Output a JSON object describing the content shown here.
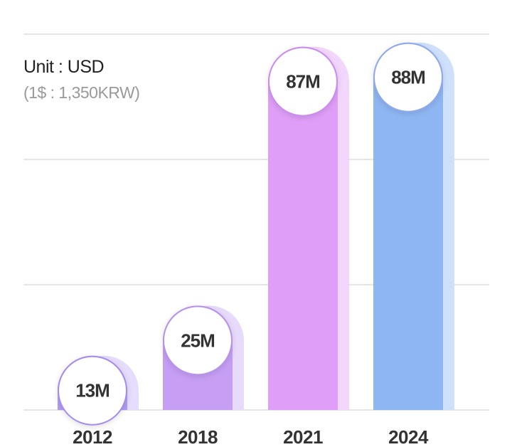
{
  "unit": {
    "label": "Unit : USD",
    "rate": "(1$ : 1,350KRW)"
  },
  "colors": {
    "bars": [
      "#b19cf7",
      "#c69ef4",
      "#df9ef8",
      "#8eb6f2"
    ],
    "shadows": [
      "#e6dcfb",
      "#e7dafa",
      "#f2d6fc",
      "#cfe0fb"
    ],
    "circle_borders": [
      "#a58bf0",
      "#b692ee",
      "#c98bf0",
      "#8ea8ee"
    ],
    "grid": "#dddddd",
    "value_text": "#333333",
    "tick_text": "#333333"
  },
  "chart_data": {
    "type": "bar",
    "categories": [
      "2012",
      "2018",
      "2021",
      "2024"
    ],
    "values": [
      13,
      25,
      87,
      88
    ],
    "value_labels": [
      "13M",
      "25M",
      "87M",
      "88M"
    ],
    "ylim": [
      0,
      90
    ],
    "grid": true
  }
}
